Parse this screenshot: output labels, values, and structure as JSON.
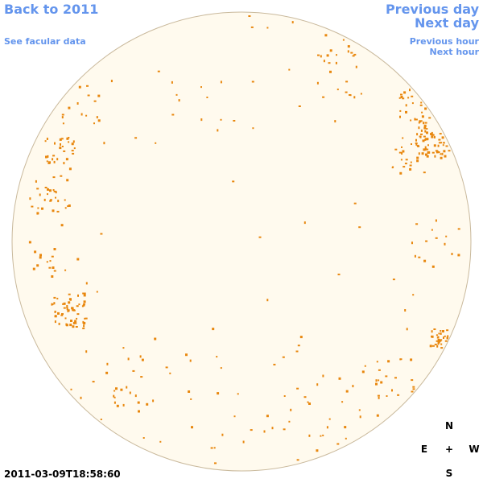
{
  "links": {
    "back": "Back to 2011",
    "facular": "See facular data",
    "previous_day": "Previous day",
    "next_day": "Next day",
    "previous_hour": "Previous hour",
    "next_hour": "Next hour"
  },
  "timestamp": "2011-03-09T18:58:60",
  "compass": {
    "north": "N",
    "east": "E",
    "center": "+",
    "west": "W",
    "south": "S"
  }
}
